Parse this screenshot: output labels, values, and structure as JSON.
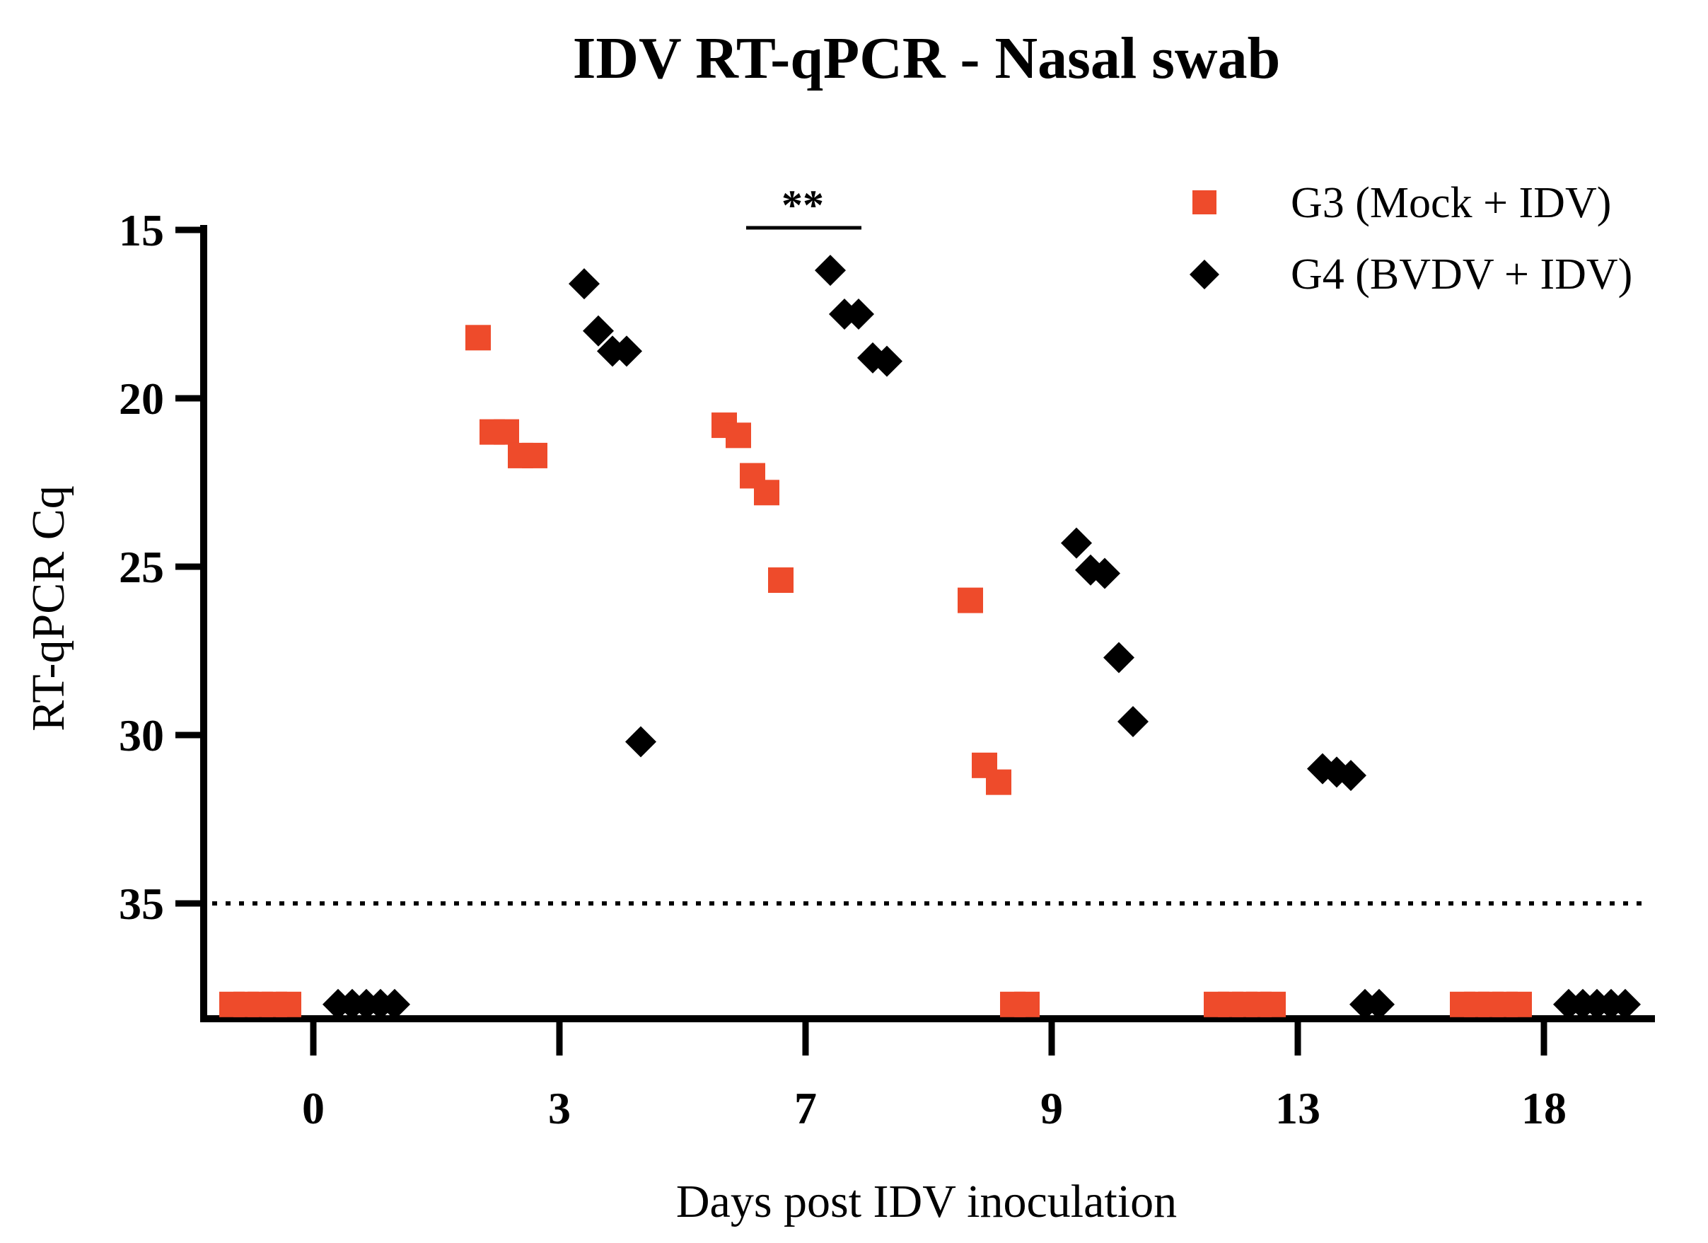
{
  "chart_data": {
    "type": "scatter",
    "title": "IDV RT-qPCR - Nasal swab",
    "xlabel": "Days post IDV inoculation",
    "ylabel": "RT-qPCR Cq",
    "categories": [
      "0",
      "3",
      "7",
      "9",
      "13",
      "18"
    ],
    "y_ticks": [
      "15",
      "20",
      "25",
      "30",
      "35"
    ],
    "ylim": [
      38.2,
      15
    ],
    "y_inverted": true,
    "threshold": 35,
    "not_detected_value": 38,
    "legend_position": "top-right",
    "significance": {
      "label": "**",
      "category": "7"
    },
    "series": [
      {
        "name": "G3 (Mock + IDV)",
        "color": "#EE4B2B",
        "marker": "square",
        "groups": [
          [
            38,
            38,
            38,
            38,
            38
          ],
          [
            18.2,
            21,
            21,
            21.7,
            21.7
          ],
          [
            20.8,
            21.1,
            22.3,
            22.8,
            25.4
          ],
          [
            26,
            30.9,
            31.4,
            38,
            38
          ],
          [
            38,
            38,
            38,
            38,
            38
          ],
          [
            38,
            38,
            38,
            38,
            38
          ]
        ]
      },
      {
        "name": "G4 (BVDV + IDV)",
        "color": "#000000",
        "marker": "diamond",
        "groups": [
          [
            38,
            38,
            38,
            38,
            38
          ],
          [
            16.6,
            18,
            18.6,
            18.6,
            30.2
          ],
          [
            16.2,
            17.5,
            17.5,
            18.8,
            18.9
          ],
          [
            24.3,
            25.1,
            25.2,
            27.7,
            29.6
          ],
          [
            31,
            31.1,
            31.2,
            38,
            38
          ],
          [
            38,
            38,
            38,
            38,
            38
          ]
        ]
      }
    ]
  }
}
